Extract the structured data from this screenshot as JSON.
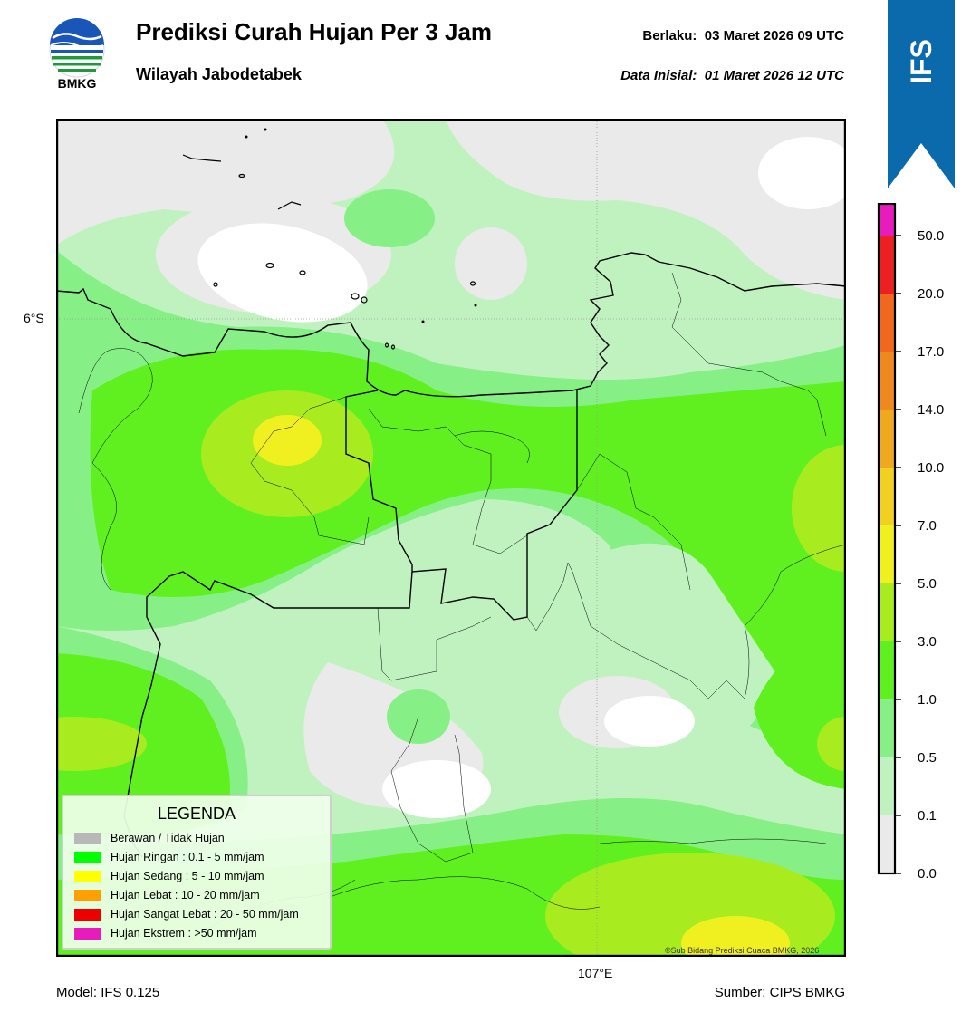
{
  "header": {
    "title": "Prediksi Curah Hujan Per 3 Jam",
    "subtitle": "Wilayah Jabodetabek",
    "valid_label": "Berlaku:",
    "valid_time": "03 Maret 2026 09 UTC",
    "init_label": "Data Inisial:",
    "init_time": "01 Maret 2026 12 UTC",
    "logo_text": "BMKG"
  },
  "badge": {
    "text": "IFS",
    "color": "#0a6aac"
  },
  "map": {
    "lat_label": "6°S",
    "lon_label": "107°E",
    "copyright": "©Sub Bidang Prediksi Cuaca BMKG, 2026"
  },
  "footer": {
    "model": "Model: IFS 0.125",
    "source": "Sumber: CIPS BMKG"
  },
  "colorbar": {
    "ticks": [
      "0.0",
      "0.1",
      "0.5",
      "1.0",
      "3.0",
      "5.0",
      "7.0",
      "10.0",
      "14.0",
      "17.0",
      "20.0",
      "50.0"
    ],
    "colors": [
      "#eaeaea",
      "#c0f2c0",
      "#86f086",
      "#60f020",
      "#a8ec20",
      "#f0f020",
      "#f0d020",
      "#f0a820",
      "#f08820",
      "#f06820",
      "#ec2020",
      "#e81cbc"
    ]
  },
  "legend": {
    "title": "LEGENDA",
    "items": [
      {
        "label": "Berawan / Tidak Hujan",
        "color": "#b8b8b8"
      },
      {
        "label": "Hujan Ringan : 0.1 - 5 mm/jam",
        "color": "#00ff00"
      },
      {
        "label": "Hujan Sedang : 5 - 10 mm/jam",
        "color": "#ffff00"
      },
      {
        "label": "Hujan Lebat : 10 - 20 mm/jam",
        "color": "#ffa000"
      },
      {
        "label": "Hujan Sangat Lebat : 20 - 50 mm/jam",
        "color": "#ee0000"
      },
      {
        "label": "Hujan Ekstrem : >50 mm/jam",
        "color": "#e81cbc"
      }
    ]
  }
}
